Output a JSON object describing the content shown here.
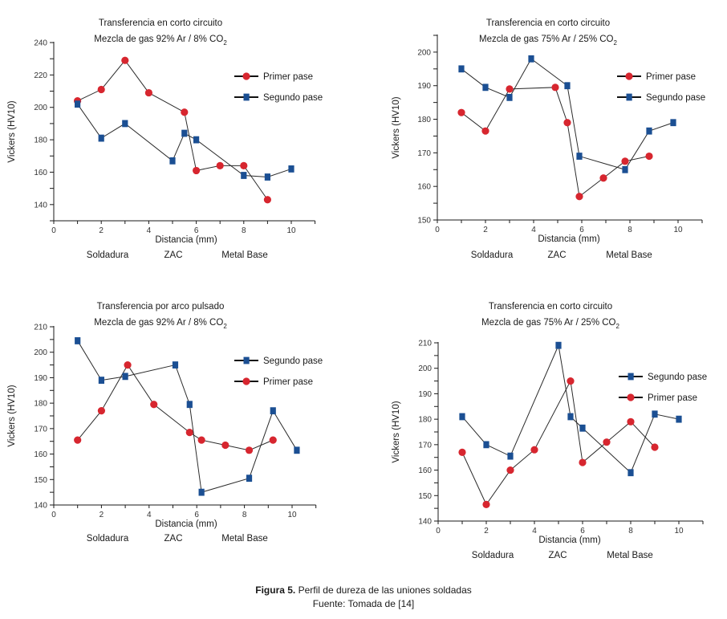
{
  "colors": {
    "primer": "#d7262f",
    "segundo": "#1b4f93",
    "line": "#2b2b2b",
    "axis": "#1a1a1a"
  },
  "caption": {
    "figure_label": "Figura 5.",
    "figure_text": "Perfil de dureza de las uniones soldadas",
    "source": "Fuente: Tomada de [14]"
  },
  "chart_data": [
    {
      "type": "line",
      "title": "Transferencia en corto circuito",
      "subtitle_main": "Mezcla de gas 92% Ar / 8% CO",
      "subtitle_sub": "2",
      "xlabel": "Distancia (mm)",
      "ylabel": "Vickers (HV10)",
      "xlim": [
        0,
        11
      ],
      "ylim": [
        130,
        240
      ],
      "xticks": [
        0,
        2,
        4,
        6,
        8,
        10
      ],
      "yticks": [
        140,
        160,
        180,
        200,
        220,
        240
      ],
      "regions": [
        "Soldadura",
        "ZAC",
        "Metal Base"
      ],
      "legend_position": "top-right",
      "legend_order": [
        "Primer pase",
        "Segundo pase"
      ],
      "grid": false,
      "series": [
        {
          "name": "Primer pase",
          "marker": "circle",
          "x": [
            1,
            2,
            3,
            4,
            5.5,
            6,
            7,
            8,
            9
          ],
          "y": [
            204,
            211,
            229,
            209,
            197,
            161,
            164,
            164,
            143
          ]
        },
        {
          "name": "Segundo pase",
          "marker": "square",
          "x": [
            1,
            2,
            3,
            5,
            5.5,
            6,
            8,
            9,
            10
          ],
          "y": [
            202,
            181,
            190,
            167,
            184,
            180,
            158,
            157,
            162
          ]
        }
      ]
    },
    {
      "type": "line",
      "title": "Transferencia en corto circuito",
      "subtitle_main": "Mezcla de gas 75% Ar / 25% CO",
      "subtitle_sub": "2",
      "xlabel": "Distancia (mm)",
      "ylabel": "Vickers (HV10)",
      "xlim": [
        0,
        11
      ],
      "ylim": [
        150,
        205
      ],
      "xticks": [
        0,
        2,
        4,
        6,
        8,
        10
      ],
      "yticks": [
        150,
        160,
        170,
        180,
        190,
        200
      ],
      "regions": [
        "Soldadura",
        "ZAC",
        "Metal Base"
      ],
      "legend_position": "top-right",
      "legend_order": [
        "Primer pase",
        "Segundo pase"
      ],
      "grid": false,
      "series": [
        {
          "name": "Primer pase",
          "marker": "circle",
          "x": [
            1,
            2,
            3,
            4.9,
            5.4,
            5.9,
            6.9,
            7.8,
            8.8
          ],
          "y": [
            182,
            176.5,
            189,
            189.5,
            179,
            157,
            162.5,
            167.5,
            169
          ]
        },
        {
          "name": "Segundo pase",
          "marker": "square",
          "x": [
            1,
            2,
            3,
            3.9,
            5.4,
            5.9,
            7.8,
            8.8,
            9.8
          ],
          "y": [
            195,
            189.5,
            186.5,
            198,
            190,
            169,
            165,
            176.5,
            179
          ]
        }
      ]
    },
    {
      "type": "line",
      "title": "Transferencia por arco pulsado",
      "subtitle_main": "Mezcla de gas 92% Ar / 8% CO",
      "subtitle_sub": "2",
      "xlabel": "Distancia (mm)",
      "ylabel": "Vickers (HV10)",
      "xlim": [
        0,
        11
      ],
      "ylim": [
        140,
        210
      ],
      "xticks": [
        0,
        2,
        4,
        6,
        8,
        10
      ],
      "yticks": [
        140,
        150,
        160,
        170,
        180,
        190,
        200,
        210
      ],
      "regions": [
        "Soldadura",
        "ZAC",
        "Metal Base"
      ],
      "legend_position": "top-right",
      "legend_order": [
        "Segundo pase",
        "Primer pase"
      ],
      "grid": false,
      "series": [
        {
          "name": "Primer pase",
          "marker": "circle",
          "x": [
            1,
            2,
            3.1,
            4.2,
            5.7,
            6.2,
            7.2,
            8.2,
            9.2
          ],
          "y": [
            165.5,
            177,
            195,
            179.5,
            168.5,
            165.5,
            163.5,
            161.5,
            165.5
          ]
        },
        {
          "name": "Segundo pase",
          "marker": "square",
          "x": [
            1,
            2,
            3,
            5.1,
            5.7,
            6.2,
            8.2,
            9.2,
            10.2
          ],
          "y": [
            204.5,
            189,
            190.5,
            195,
            179.5,
            145,
            150.5,
            177,
            161.5
          ]
        }
      ]
    },
    {
      "type": "line",
      "title": "Transferencia en corto circuito",
      "subtitle_main": "Mezcla de gas 75% Ar / 25% CO",
      "subtitle_sub": "2",
      "xlabel": "Distancia (mm)",
      "ylabel": "Vickers (HV10)",
      "xlim": [
        0,
        11
      ],
      "ylim": [
        140,
        210
      ],
      "xticks": [
        0,
        2,
        4,
        6,
        8,
        10
      ],
      "yticks": [
        140,
        150,
        160,
        170,
        180,
        190,
        200,
        210
      ],
      "regions": [
        "Soldadura",
        "ZAC",
        "Metal Base"
      ],
      "legend_position": "top-right",
      "legend_order": [
        "Segundo pase",
        "Primer pase"
      ],
      "grid": false,
      "series": [
        {
          "name": "Primer pase",
          "marker": "circle",
          "x": [
            1,
            2,
            3,
            4,
            5.5,
            6,
            7,
            8,
            9
          ],
          "y": [
            167,
            146.5,
            160,
            168,
            195,
            163,
            171,
            179,
            169
          ]
        },
        {
          "name": "Segundo pase",
          "marker": "square",
          "x": [
            1,
            2,
            3,
            5,
            5.5,
            6,
            8,
            9,
            10
          ],
          "y": [
            181,
            170,
            165.5,
            209,
            181,
            176.5,
            159,
            182,
            180
          ]
        }
      ]
    }
  ]
}
